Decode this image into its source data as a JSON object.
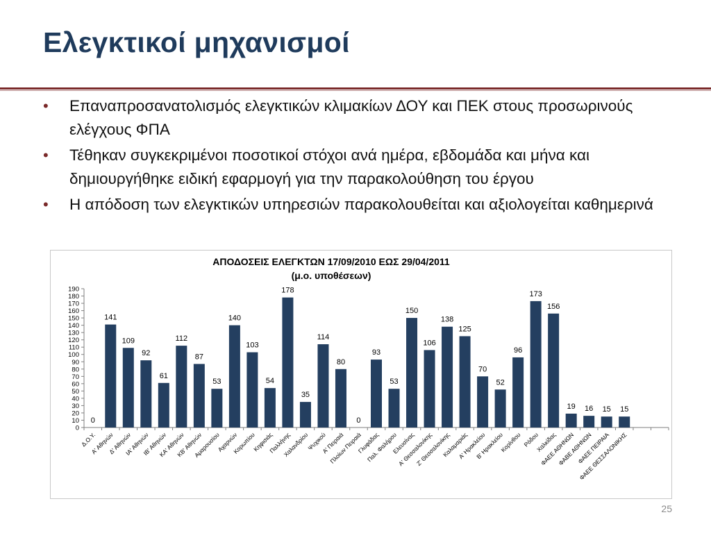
{
  "slide": {
    "title": "Ελεγκτικοί μηχανισμοί",
    "bullets": [
      "Επαναπροσανατολισμός ελεγκτικών κλιμακίων ΔΟΥ και ΠΕΚ στους προσωρινούς ελέγχους ΦΠΑ",
      "Τέθηκαν συγκεκριμένοι ποσοτικοί στόχοι ανά ημέρα, εβδομάδα και μήνα και δημιουργήθηκε ειδική εφαρμογή για την παρακολούθηση του έργου",
      "Η απόδοση των ελεγκτικών υπηρεσιών παρακολουθείται και αξιολογείται καθημερινά"
    ],
    "page_number": "25"
  },
  "chart_data": {
    "type": "bar",
    "title": "ΑΠΟΔΟΣΕΙΣ ΕΛΕΓΚΤΩΝ 17/09/2010 ΕΩΣ 29/04/2011",
    "subtitle": "(μ.ο. υποθέσεων)",
    "xlabel": "",
    "ylabel": "",
    "ylim": [
      0,
      190
    ],
    "ytick_step": 10,
    "grid": false,
    "legend": "none",
    "bar_color": "#243f60",
    "categories": [
      "Δ.Ο.Υ.",
      "Α' Αθηνών",
      "Δ' Αθηνών",
      "ΙΑ' Αθηνών",
      "ΙΒ' Αθηνών",
      "ΚΑ' Αθηνών",
      "ΚΒ' Αθηνών",
      "Αμαρουσίου",
      "Αχαρνών",
      "Κορωπίου",
      "Κηφισιάς",
      "Παλλήνης",
      "Χαλανδρίου",
      "Ψυχικού",
      "Α' Πειραιά",
      "Πλοίων Πειραιά",
      "Γλυφάδας",
      "Παλ. Φαλήρου",
      "Ελευσίνας",
      "Α' Θεσσαλονίκης",
      "Ζ' Θεσσαλονίκης",
      "Καλαμαριάς",
      "Α' Ηρακλείου",
      "Β' Ηρακλείου",
      "Κορίνθου",
      "Ρόδου",
      "Χαλκίδας",
      "ΦΑΕΕ ΑΘΗΝΩΝ",
      "ΦΑΒΕ ΑΘΗΝΩΝ",
      "ΦΑΕΕ ΠΕΙΡΑΙΑ",
      "ΦΑΕΕ ΘΕΣΣΑΛΟΝΙΚΗΣ",
      "",
      ""
    ],
    "values": [
      0,
      141,
      109,
      92,
      61,
      112,
      87,
      53,
      140,
      103,
      54,
      178,
      35,
      114,
      80,
      0,
      93,
      53,
      150,
      106,
      138,
      125,
      70,
      52,
      96,
      173,
      156,
      19,
      16,
      15,
      15,
      null,
      null
    ]
  }
}
